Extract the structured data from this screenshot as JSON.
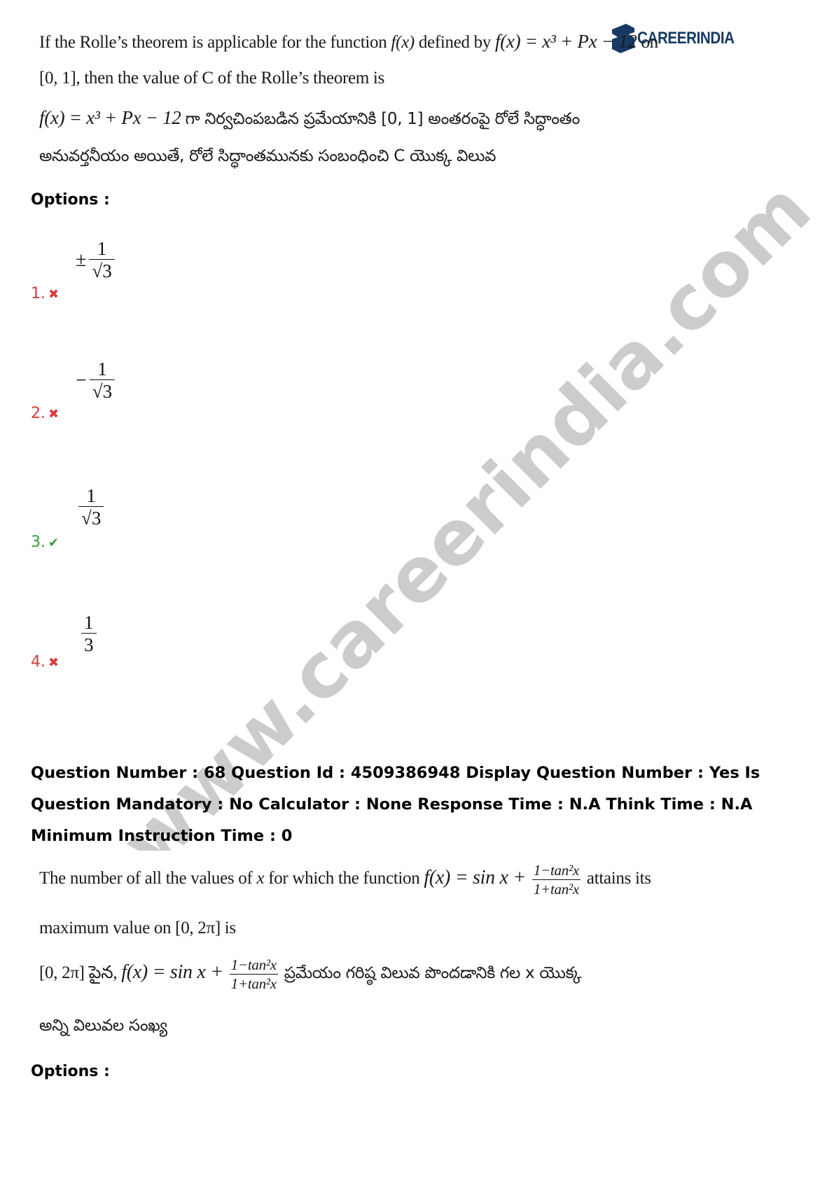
{
  "logo": {
    "text": "CAREERINDIA"
  },
  "watermark": "www.careerindia.com",
  "q67": {
    "line1_pre": "If the Rolle’s theorem is applicable for the function",
    "line1_fx": "f(x)",
    "line1_mid": "defined by",
    "line1_formula": "f(x) = x³ + Px − 12",
    "line1_post": "on",
    "line2": "[0, 1], then the value of C of the Rolle’s theorem is",
    "te_line1_formula": "f(x) = x³ + Px − 12",
    "te_line1_text": "గా నిర్వచింపబడిన ప్రమేయానికి [0, 1] అంతరంపై రోలే సిద్ధాంతం",
    "te_line2": "అనువర్తనీయం అయితే, రోలే సిద్ధాంతమునకు సంబంధించి C యొక్క విలువ",
    "options_label": "Options :",
    "options": [
      {
        "num": "1.",
        "status": "wrong",
        "mark": "✖",
        "sign": "±",
        "numerator": "1",
        "denominator": "√3"
      },
      {
        "num": "2.",
        "status": "wrong",
        "mark": "✖",
        "sign": "−",
        "numerator": "1",
        "denominator": "√3"
      },
      {
        "num": "3.",
        "status": "correct",
        "mark": "✔",
        "sign": "",
        "numerator": "1",
        "denominator": "√3"
      },
      {
        "num": "4.",
        "status": "wrong",
        "mark": "✖",
        "sign": "",
        "numerator": "1",
        "denominator": "3"
      }
    ]
  },
  "q68": {
    "meta": "Question Number : 68 Question Id : 4509386948 Display Question Number : Yes Is Question Mandatory : No Calculator : None Response Time : N.A Think Time : N.A Minimum Instruction Time : 0",
    "line1_pre": "The number of all the values of",
    "line1_x": "x",
    "line1_mid": "for which the function",
    "line1_formula": "f(x) = sin x +",
    "frac_num": "1−tan²x",
    "frac_den": "1+tan²x",
    "line1_post": "attains its",
    "line2": "maximum value on [0, 2π] is",
    "te_line1_pre": "[0, 2π] పైన,",
    "te_line1_formula": "f(x) = sin x +",
    "te_line1_post": "ప్రమేయం గరిష్ఠ విలువ పొందడానికి గల x యొక్క",
    "te_line2": "అన్ని విలువల సంఖ్య",
    "options_label": "Options :"
  }
}
